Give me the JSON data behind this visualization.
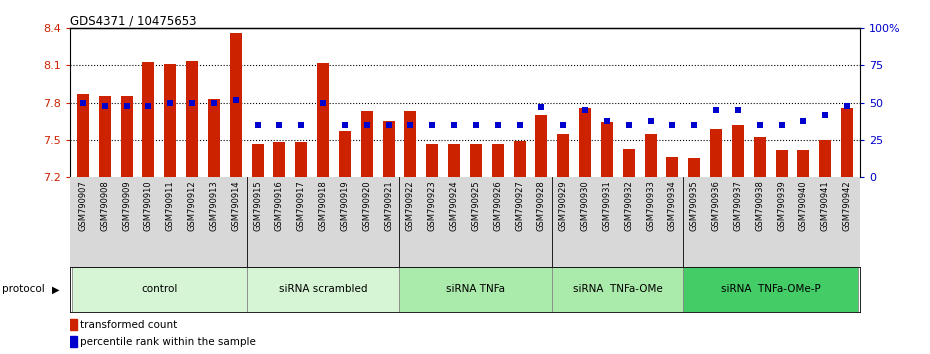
{
  "title": "GDS4371 / 10475653",
  "samples": [
    "GSM790907",
    "GSM790908",
    "GSM790909",
    "GSM790910",
    "GSM790911",
    "GSM790912",
    "GSM790913",
    "GSM790914",
    "GSM790915",
    "GSM790916",
    "GSM790917",
    "GSM790918",
    "GSM790919",
    "GSM790920",
    "GSM790921",
    "GSM790922",
    "GSM790923",
    "GSM790924",
    "GSM790925",
    "GSM790926",
    "GSM790927",
    "GSM790928",
    "GSM790929",
    "GSM790930",
    "GSM790931",
    "GSM790932",
    "GSM790933",
    "GSM790934",
    "GSM790935",
    "GSM790936",
    "GSM790937",
    "GSM790938",
    "GSM790939",
    "GSM790940",
    "GSM790941",
    "GSM790942"
  ],
  "red_values": [
    7.87,
    7.85,
    7.85,
    8.13,
    8.11,
    8.14,
    7.83,
    8.36,
    7.47,
    7.48,
    7.48,
    8.12,
    7.57,
    7.73,
    7.65,
    7.73,
    7.47,
    7.47,
    7.47,
    7.47,
    7.49,
    7.7,
    7.55,
    7.76,
    7.64,
    7.43,
    7.55,
    7.36,
    7.35,
    7.59,
    7.62,
    7.52,
    7.42,
    7.42,
    7.5,
    7.76
  ],
  "blue_pct": [
    50,
    48,
    48,
    48,
    50,
    50,
    50,
    52,
    35,
    35,
    35,
    50,
    35,
    35,
    35,
    35,
    35,
    35,
    35,
    35,
    35,
    47,
    35,
    45,
    38,
    35,
    38,
    35,
    35,
    45,
    45,
    35,
    35,
    38,
    42,
    48
  ],
  "groups": [
    {
      "label": "control",
      "start": 0,
      "end": 7,
      "color": "#d5f5d5"
    },
    {
      "label": "siRNA scrambled",
      "start": 8,
      "end": 14,
      "color": "#d5f5d5"
    },
    {
      "label": "siRNA TNFa",
      "start": 15,
      "end": 21,
      "color": "#aaeaaa"
    },
    {
      "label": "siRNA  TNFa-OMe",
      "start": 22,
      "end": 27,
      "color": "#aaeaaa"
    },
    {
      "label": "siRNA  TNFa-OMe-P",
      "start": 28,
      "end": 35,
      "color": "#44cc66"
    }
  ],
  "ymin": 7.2,
  "ymax": 8.4,
  "yticks": [
    7.2,
    7.5,
    7.8,
    8.1,
    8.4
  ],
  "ytick_labels": [
    "7.2",
    "7.5",
    "7.8",
    "8.1",
    "8.4"
  ],
  "grid_lines": [
    7.5,
    7.8,
    8.1
  ],
  "right_yticks_pct": [
    0,
    25,
    50,
    75,
    100
  ],
  "right_ytick_labels": [
    "0",
    "25",
    "50",
    "75",
    "100%"
  ],
  "bar_color": "#cc2200",
  "dot_color": "#0000cc",
  "xlabels_bg": "#d8d8d8",
  "fig_bg": "#ffffff"
}
